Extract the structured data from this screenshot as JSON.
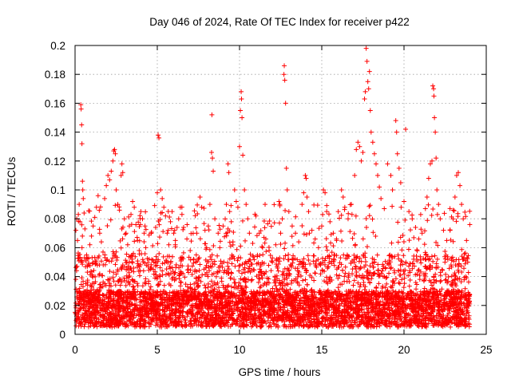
{
  "chart_data": {
    "type": "scatter",
    "title": "Day 046 of 2024, Rate Of TEC Index for receiver p422",
    "xlabel": "GPS time / hours",
    "ylabel": "ROTI / TECUs",
    "xlim": [
      0,
      25
    ],
    "ylim": [
      0,
      0.2
    ],
    "x_ticks": [
      0,
      5,
      10,
      15,
      20,
      25
    ],
    "x_tick_labels": [
      "0",
      "5",
      "10",
      "15",
      "20",
      "25"
    ],
    "y_ticks": [
      0,
      0.02,
      0.04,
      0.06,
      0.08,
      0.1,
      0.12,
      0.14,
      0.16,
      0.18,
      0.2
    ],
    "y_tick_labels": [
      "0",
      "0.02",
      "0.04",
      "0.06",
      "0.08",
      "0.1",
      "0.12",
      "0.14",
      "0.16",
      "0.18",
      "0.2"
    ],
    "grid": true,
    "marker": "+",
    "color": "#ff0000",
    "x_range_of_data": [
      0.0,
      24.0
    ],
    "dense_band_y_range": [
      0.005,
      0.03
    ],
    "series": [
      {
        "name": "ROTI",
        "points": [
          [
            0.05,
            0.072
          ],
          [
            0.1,
            0.08
          ],
          [
            0.15,
            0.065
          ],
          [
            0.2,
            0.083
          ],
          [
            0.25,
            0.09
          ],
          [
            0.3,
            0.078
          ],
          [
            0.35,
            0.159
          ],
          [
            0.37,
            0.156
          ],
          [
            0.4,
            0.145
          ],
          [
            0.42,
            0.132
          ],
          [
            0.45,
            0.106
          ],
          [
            0.47,
            0.1
          ],
          [
            0.5,
            0.094
          ],
          [
            0.55,
            0.084
          ],
          [
            0.6,
            0.073
          ],
          [
            0.7,
            0.055
          ],
          [
            0.8,
            0.048
          ],
          [
            0.9,
            0.062
          ],
          [
            1.0,
            0.068
          ],
          [
            1.1,
            0.075
          ],
          [
            1.2,
            0.081
          ],
          [
            1.3,
            0.088
          ],
          [
            1.4,
            0.096
          ],
          [
            1.5,
            0.07
          ],
          [
            1.6,
            0.064
          ],
          [
            1.7,
            0.057
          ],
          [
            1.8,
            0.094
          ],
          [
            1.9,
            0.103
          ],
          [
            2.0,
            0.11
          ],
          [
            2.1,
            0.107
          ],
          [
            2.2,
            0.113
          ],
          [
            2.3,
            0.12
          ],
          [
            2.35,
            0.127
          ],
          [
            2.4,
            0.128
          ],
          [
            2.45,
            0.125
          ],
          [
            2.5,
            0.1
          ],
          [
            2.6,
            0.09
          ],
          [
            2.7,
            0.086
          ],
          [
            2.8,
            0.11
          ],
          [
            2.85,
            0.118
          ],
          [
            2.9,
            0.112
          ],
          [
            3.0,
            0.08
          ],
          [
            3.1,
            0.07
          ],
          [
            3.2,
            0.062
          ],
          [
            3.3,
            0.075
          ],
          [
            3.4,
            0.083
          ],
          [
            3.5,
            0.092
          ],
          [
            3.6,
            0.088
          ],
          [
            3.7,
            0.076
          ],
          [
            3.8,
            0.065
          ],
          [
            3.9,
            0.058
          ],
          [
            4.0,
            0.085
          ],
          [
            4.1,
            0.08
          ],
          [
            4.2,
            0.07
          ],
          [
            4.3,
            0.06
          ],
          [
            4.5,
            0.052
          ],
          [
            4.6,
            0.045
          ],
          [
            4.8,
            0.05
          ],
          [
            4.9,
            0.074
          ],
          [
            5.0,
            0.098
          ],
          [
            5.05,
            0.138
          ],
          [
            5.1,
            0.136
          ],
          [
            5.2,
            0.1
          ],
          [
            5.3,
            0.094
          ],
          [
            5.4,
            0.088
          ],
          [
            5.5,
            0.082
          ],
          [
            5.6,
            0.07
          ],
          [
            5.7,
            0.062
          ],
          [
            5.8,
            0.078
          ],
          [
            5.9,
            0.085
          ],
          [
            6.0,
            0.07
          ],
          [
            6.1,
            0.065
          ],
          [
            6.2,
            0.074
          ],
          [
            6.3,
            0.08
          ],
          [
            6.4,
            0.088
          ],
          [
            6.5,
            0.083
          ],
          [
            6.6,
            0.074
          ],
          [
            6.8,
            0.066
          ],
          [
            7.0,
            0.058
          ],
          [
            7.2,
            0.052
          ],
          [
            7.4,
            0.07
          ],
          [
            7.6,
            0.095
          ],
          [
            7.7,
            0.088
          ],
          [
            7.9,
            0.072
          ],
          [
            8.0,
            0.06
          ],
          [
            8.1,
            0.075
          ],
          [
            8.2,
            0.09
          ],
          [
            8.3,
            0.126
          ],
          [
            8.32,
            0.152
          ],
          [
            8.35,
            0.122
          ],
          [
            8.4,
            0.113
          ],
          [
            8.5,
            0.08
          ],
          [
            8.7,
            0.07
          ],
          [
            8.8,
            0.06
          ],
          [
            9.0,
            0.075
          ],
          [
            9.2,
            0.09
          ],
          [
            9.3,
            0.118
          ],
          [
            9.35,
            0.112
          ],
          [
            9.4,
            0.085
          ],
          [
            9.5,
            0.078
          ],
          [
            9.6,
            0.064
          ],
          [
            9.7,
            0.1
          ],
          [
            9.8,
            0.092
          ],
          [
            9.9,
            0.088
          ],
          [
            10.0,
            0.13
          ],
          [
            10.05,
            0.155
          ],
          [
            10.1,
            0.168
          ],
          [
            10.12,
            0.163
          ],
          [
            10.15,
            0.15
          ],
          [
            10.2,
            0.124
          ],
          [
            10.3,
            0.1
          ],
          [
            10.4,
            0.09
          ],
          [
            10.5,
            0.08
          ],
          [
            10.6,
            0.07
          ],
          [
            10.8,
            0.063
          ],
          [
            11.0,
            0.082
          ],
          [
            11.2,
            0.07
          ],
          [
            11.4,
            0.06
          ],
          [
            11.6,
            0.066
          ],
          [
            11.8,
            0.058
          ],
          [
            12.0,
            0.05
          ],
          [
            12.2,
            0.062
          ],
          [
            12.4,
            0.092
          ],
          [
            12.45,
            0.09
          ],
          [
            12.5,
            0.07
          ],
          [
            12.6,
            0.08
          ],
          [
            12.7,
            0.18
          ],
          [
            12.72,
            0.186
          ],
          [
            12.75,
            0.176
          ],
          [
            12.8,
            0.16
          ],
          [
            12.85,
            0.115
          ],
          [
            12.9,
            0.1
          ],
          [
            13.0,
            0.085
          ],
          [
            13.2,
            0.075
          ],
          [
            13.4,
            0.07
          ],
          [
            13.6,
            0.064
          ],
          [
            13.8,
            0.09
          ],
          [
            13.9,
            0.098
          ],
          [
            14.0,
            0.11
          ],
          [
            14.05,
            0.108
          ],
          [
            14.1,
            0.095
          ],
          [
            14.2,
            0.085
          ],
          [
            14.4,
            0.072
          ],
          [
            14.6,
            0.066
          ],
          [
            14.8,
            0.06
          ],
          [
            15.0,
            0.075
          ],
          [
            15.1,
            0.1
          ],
          [
            15.2,
            0.098
          ],
          [
            15.3,
            0.085
          ],
          [
            15.5,
            0.078
          ],
          [
            15.7,
            0.07
          ],
          [
            15.9,
            0.065
          ],
          [
            16.0,
            0.085
          ],
          [
            16.2,
            0.1
          ],
          [
            16.3,
            0.095
          ],
          [
            16.4,
            0.088
          ],
          [
            16.6,
            0.08
          ],
          [
            16.8,
            0.09
          ],
          [
            17.0,
            0.11
          ],
          [
            17.1,
            0.128
          ],
          [
            17.2,
            0.133
          ],
          [
            17.3,
            0.13
          ],
          [
            17.4,
            0.12
          ],
          [
            17.5,
            0.126
          ],
          [
            17.6,
            0.163
          ],
          [
            17.65,
            0.168
          ],
          [
            17.7,
            0.198
          ],
          [
            17.75,
            0.189
          ],
          [
            17.8,
            0.175
          ],
          [
            17.85,
            0.17
          ],
          [
            17.9,
            0.182
          ],
          [
            17.95,
            0.155
          ],
          [
            18.0,
            0.14
          ],
          [
            18.1,
            0.133
          ],
          [
            18.2,
            0.125
          ],
          [
            18.3,
            0.118
          ],
          [
            18.4,
            0.11
          ],
          [
            18.5,
            0.102
          ],
          [
            18.6,
            0.094
          ],
          [
            18.8,
            0.087
          ],
          [
            19.0,
            0.118
          ],
          [
            19.2,
            0.11
          ],
          [
            19.3,
            0.1
          ],
          [
            19.5,
            0.148
          ],
          [
            19.55,
            0.14
          ],
          [
            19.6,
            0.125
          ],
          [
            19.7,
            0.115
          ],
          [
            19.8,
            0.105
          ],
          [
            20.0,
            0.092
          ],
          [
            20.1,
            0.142
          ],
          [
            20.3,
            0.085
          ],
          [
            20.5,
            0.08
          ],
          [
            20.7,
            0.074
          ],
          [
            20.9,
            0.066
          ],
          [
            21.1,
            0.07
          ],
          [
            21.3,
            0.087
          ],
          [
            21.4,
            0.095
          ],
          [
            21.5,
            0.108
          ],
          [
            21.6,
            0.118
          ],
          [
            21.7,
            0.12
          ],
          [
            21.75,
            0.172
          ],
          [
            21.8,
            0.17
          ],
          [
            21.82,
            0.165
          ],
          [
            21.85,
            0.15
          ],
          [
            21.9,
            0.14
          ],
          [
            21.95,
            0.122
          ],
          [
            22.0,
            0.1
          ],
          [
            22.1,
            0.09
          ],
          [
            22.2,
            0.08
          ],
          [
            22.4,
            0.072
          ],
          [
            22.6,
            0.065
          ],
          [
            22.8,
            0.072
          ],
          [
            23.0,
            0.086
          ],
          [
            23.1,
            0.095
          ],
          [
            23.2,
            0.11
          ],
          [
            23.3,
            0.112
          ],
          [
            23.4,
            0.103
          ],
          [
            23.5,
            0.09
          ],
          [
            23.6,
            0.08
          ],
          [
            23.8,
            0.065
          ],
          [
            24.0,
            0.076
          ]
        ]
      }
    ],
    "dense_generation": {
      "seed": 46,
      "count": 5200
    }
  }
}
